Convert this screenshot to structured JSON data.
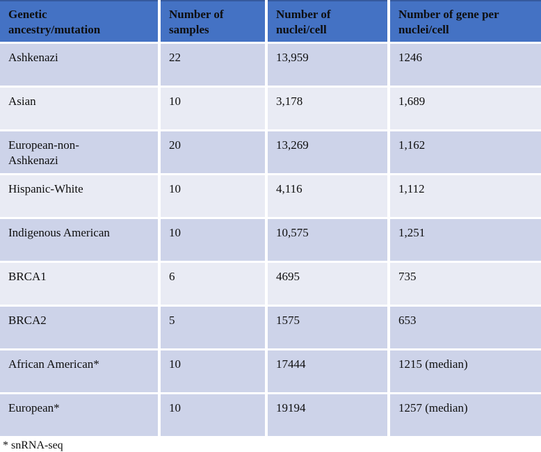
{
  "table": {
    "columns": [
      {
        "key": "ancestry",
        "label": "Genetic\nancestry/mutation"
      },
      {
        "key": "samples",
        "label": "Number of\nsamples"
      },
      {
        "key": "nuclei",
        "label": "Number of\nnuclei/cell"
      },
      {
        "key": "genes",
        "label": "Number of gene per\nnuclei/cell"
      }
    ],
    "rows": [
      {
        "shade": "dark",
        "ancestry": "Ashkenazi",
        "samples": "22",
        "nuclei": "13,959",
        "genes": "1246"
      },
      {
        "shade": "light",
        "ancestry": "Asian",
        "samples": "10",
        "nuclei": "3,178",
        "genes": "1,689"
      },
      {
        "shade": "dark",
        "ancestry": "European-non-\nAshkenazi",
        "samples": "20",
        "nuclei": "13,269",
        "genes": "1,162"
      },
      {
        "shade": "light",
        "ancestry": "Hispanic-White",
        "samples": "10",
        "nuclei": "4,116",
        "genes": "1,112"
      },
      {
        "shade": "dark",
        "ancestry": "Indigenous American",
        "samples": "10",
        "nuclei": "10,575",
        "genes": "1,251"
      },
      {
        "shade": "light",
        "ancestry": "BRCA1",
        "samples": "6",
        "nuclei": "4695",
        "genes": "735"
      },
      {
        "shade": "dark",
        "ancestry": "BRCA2",
        "samples": "5",
        "nuclei": "1575",
        "genes": "653"
      },
      {
        "shade": "dark",
        "ancestry": "African American*",
        "samples": "10",
        "nuclei": "17444",
        "genes": "1215 (median)"
      },
      {
        "shade": "dark",
        "ancestry": "European*",
        "samples": "10",
        "nuclei": "19194",
        "genes": "1257 (median)"
      }
    ],
    "footnote": "* snRNA-seq"
  },
  "colors": {
    "header_bg": "#4472c4",
    "header_top_border": "#35599e",
    "row_dark": "#cdd3e9",
    "row_light": "#e9ebf4",
    "text": "#0e0e0e",
    "separator": "#ffffff"
  }
}
